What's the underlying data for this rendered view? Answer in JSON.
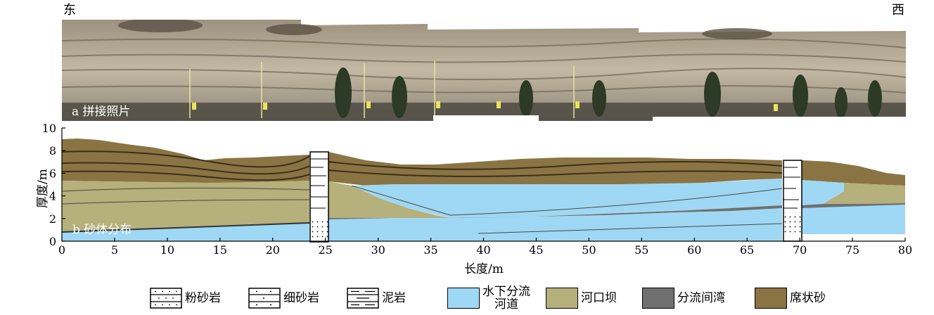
{
  "directions": {
    "east": "东",
    "west": "西"
  },
  "panel_a": {
    "label": "a 拼接照片"
  },
  "panel_b": {
    "label": "b 砂体分布"
  },
  "axes": {
    "x_label": "长度/m",
    "y_label": "厚度/m",
    "x_ticks": [
      "0",
      "5",
      "10",
      "15",
      "20",
      "25",
      "30",
      "35",
      "40",
      "45",
      "50",
      "55",
      "60",
      "65",
      "70",
      "75",
      "80"
    ],
    "y_ticks": [
      "0",
      "2",
      "4",
      "6",
      "8",
      "10"
    ]
  },
  "legend": [
    {
      "label": "粉砂岩",
      "pattern": "siltstone"
    },
    {
      "label": "细砂岩",
      "pattern": "fine-sandstone"
    },
    {
      "label": "泥岩",
      "pattern": "mudstone"
    },
    {
      "label": "水下分流\n河道",
      "color": "#9fd8f5"
    },
    {
      "label": "河口坝",
      "color": "#b5b07c"
    },
    {
      "label": "分流间湾",
      "color": "#707070"
    },
    {
      "label": "席状砂",
      "color": "#8b7443"
    }
  ],
  "colors": {
    "channel": "#9fd8f5",
    "mouth_bar": "#b5b07c",
    "interdistributary_bay": "#707070",
    "sheet_sand": "#8b7443",
    "rock": "#b7ad9a"
  },
  "chart_data": {
    "type": "cross-section",
    "xlabel": "长度/m",
    "ylabel": "厚度/m",
    "xlim": [
      0,
      80
    ],
    "ylim": [
      0,
      10
    ],
    "columns_at_x": [
      24.5,
      69.5
    ]
  }
}
